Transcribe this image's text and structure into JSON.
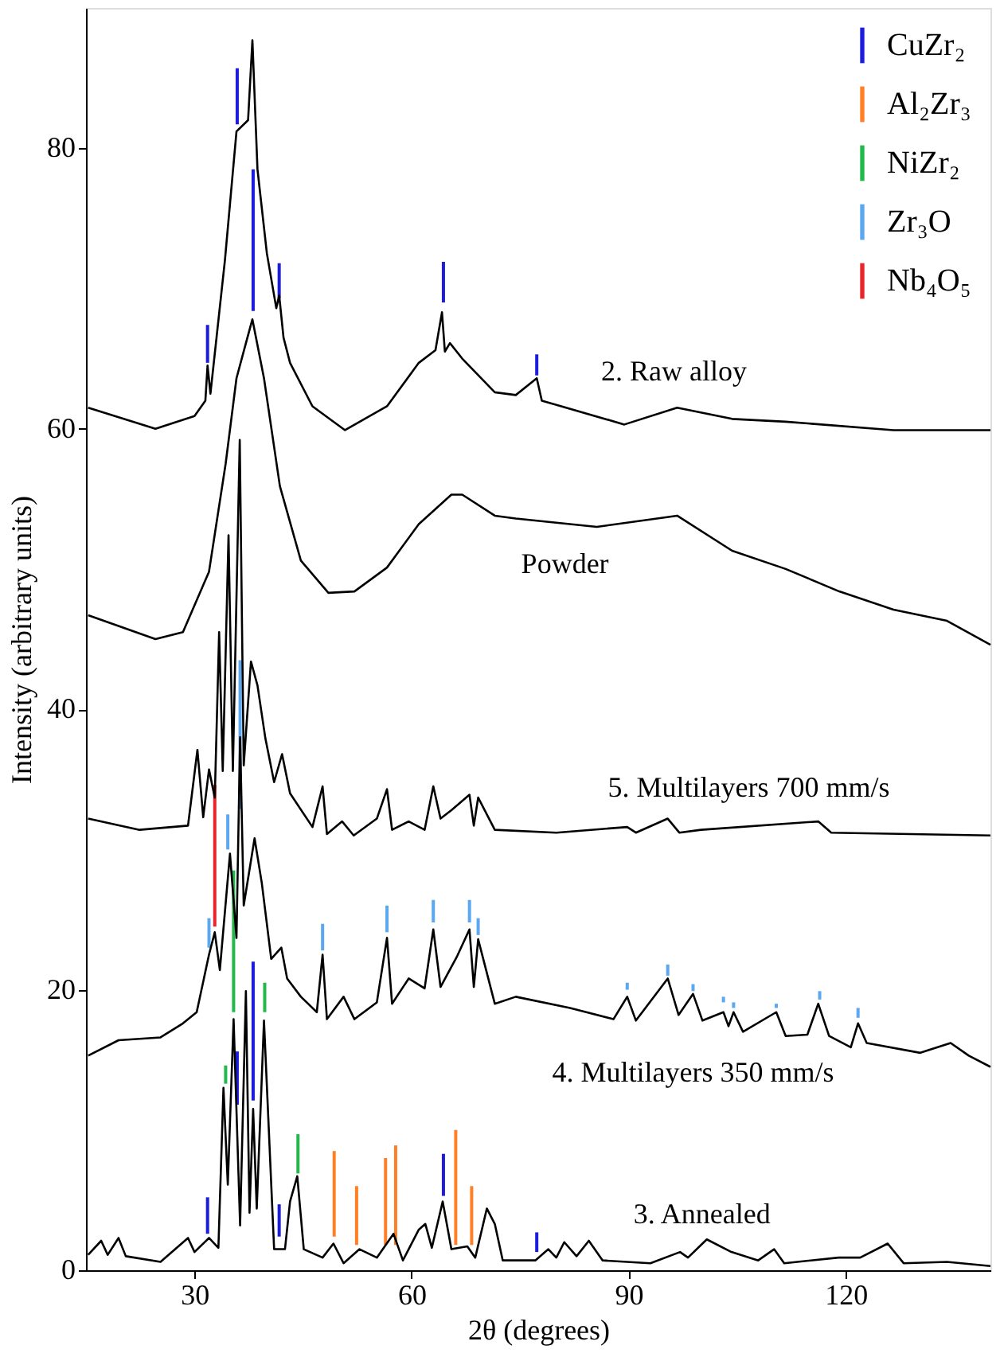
{
  "chart_data": {
    "type": "line",
    "xlabel": "2θ (degrees)",
    "ylabel": "Intensity (arbitrary units)",
    "xlim": [
      15,
      140
    ],
    "ylim": [
      0,
      90
    ],
    "xticks": [
      30,
      60,
      90,
      120
    ],
    "yticks": [
      0,
      20,
      40,
      60,
      80
    ],
    "grid": false,
    "legend": "top right",
    "series": [
      {
        "name": "2. Raw alloy",
        "color": "#000000",
        "x": [
          15.3,
          24.6,
          30,
          31.5,
          31.8,
          32.2,
          34.2,
          35.8,
          37.4,
          38,
          38.7,
          40,
          41.3,
          41.7,
          42.3,
          43.2,
          46.3,
          50.8,
          56.6,
          61,
          63.3,
          64.2,
          64.6,
          65.3,
          67,
          71.5,
          74.4,
          77.3,
          78,
          89.4,
          96.7,
          104.3,
          111.7,
          126.6,
          140
        ],
        "values": [
          61.5,
          60,
          60.9,
          62,
          64.5,
          62.5,
          72,
          81.2,
          82,
          87.7,
          78.5,
          72.5,
          68.6,
          69.5,
          66.5,
          64.7,
          61.6,
          59.9,
          61.6,
          64.7,
          65.6,
          68.3,
          65.5,
          66.1,
          65,
          62.6,
          62.4,
          63.6,
          62,
          60.3,
          61.5,
          60.7,
          60.5,
          59.9,
          59.9
        ]
      },
      {
        "name": "Powder",
        "color": "#000000",
        "x": [
          15.3,
          24.6,
          28.4,
          32,
          34.3,
          35.8,
          37,
          38,
          39.6,
          41.8,
          44.7,
          48.5,
          52.1,
          56.6,
          61,
          65.5,
          67,
          71.5,
          74.4,
          85.6,
          96.7,
          104.3,
          111.7,
          119.1,
          126.6,
          134,
          140
        ],
        "values": [
          46.7,
          45,
          45.5,
          49.8,
          57.5,
          63.6,
          65.9,
          67.8,
          63.6,
          55.9,
          50.6,
          48.3,
          48.4,
          50.1,
          53.2,
          55.3,
          55.3,
          53.8,
          53.6,
          53,
          53.8,
          51.3,
          50,
          48.4,
          47.1,
          46.3,
          44.6
        ]
      },
      {
        "name": "5. Multilayers 700 mm/s",
        "color": "#000000",
        "x": [
          15.3,
          22.4,
          29.1,
          30.4,
          31.2,
          32,
          32.8,
          33.4,
          33.9,
          34.7,
          35.3,
          36.25,
          36.8,
          37.8,
          38.7,
          39.8,
          41,
          42.1,
          43.2,
          46.3,
          47.7,
          48.3,
          50.4,
          52,
          55.2,
          56.6,
          57.3,
          59.6,
          61.8,
          63,
          64,
          65.5,
          68,
          68.6,
          69.2,
          71.5,
          80,
          89.8,
          91,
          95.4,
          97,
          100,
          116.2,
          118,
          140
        ],
        "values": [
          32.2,
          31.4,
          31.7,
          37.1,
          32.3,
          35.7,
          33.7,
          45.5,
          35.6,
          52.4,
          35.6,
          59.2,
          36,
          43.4,
          41.7,
          37.9,
          34.8,
          36.8,
          34,
          31.6,
          34.5,
          31.1,
          32,
          31,
          32.2,
          34.3,
          31.4,
          32,
          31.4,
          34.5,
          32.2,
          32.8,
          33.9,
          31.7,
          33.7,
          31.4,
          31.2,
          31.6,
          31.2,
          32.2,
          31.2,
          31.4,
          32.0,
          31.2,
          31.0
        ]
      },
      {
        "name": "4. Multilayers 350 mm/s",
        "color": "#000000",
        "x": [
          15.3,
          19.5,
          25.3,
          28.4,
          30.3,
          32,
          32.8,
          33.5,
          34.9,
          35.8,
          36.3,
          36.8,
          38.3,
          39.3,
          40.6,
          42,
          42.8,
          44.7,
          46.9,
          47.7,
          48.3,
          50.6,
          52.1,
          55.2,
          56.6,
          57.3,
          59.6,
          61.8,
          63,
          64,
          66.3,
          68,
          68.6,
          69.2,
          71.5,
          74.4,
          81.9,
          87.9,
          89.8,
          91,
          95.4,
          96.9,
          98.9,
          100.2,
          103.1,
          103.8,
          104.5,
          105.8,
          110.4,
          111.7,
          114.7,
          116.2,
          117.7,
          120.7,
          121.7,
          122.9,
          130.3,
          134.5,
          137,
          140
        ],
        "values": [
          15.3,
          16.4,
          16.6,
          17.6,
          18.4,
          22.5,
          24.1,
          21.4,
          29.7,
          23.7,
          38,
          26,
          30.8,
          27.6,
          22.2,
          23,
          20.8,
          19.5,
          18.4,
          22.5,
          17.9,
          19.5,
          17.9,
          19.1,
          23.7,
          19,
          20.8,
          20.1,
          24.3,
          20.2,
          22.4,
          24.3,
          20.2,
          23.6,
          19,
          19.5,
          18.7,
          17.9,
          19.5,
          17.8,
          20.8,
          18.2,
          19.7,
          17.8,
          18.4,
          17.4,
          18.4,
          17,
          18.4,
          16.7,
          16.8,
          19,
          16.7,
          15.9,
          17.6,
          16.2,
          15.5,
          16.2,
          15.3,
          14.5
        ]
      },
      {
        "name": "3. Annealed",
        "color": "#000000",
        "x": [
          15.3,
          17.1,
          18,
          19.5,
          20.5,
          25.3,
          29.1,
          30,
          32,
          33.3,
          34,
          34.6,
          35.4,
          36.3,
          37.1,
          37.6,
          38.1,
          38.6,
          39.6,
          41,
          42.5,
          43.2,
          44.2,
          45.1,
          47.7,
          49.2,
          50.6,
          52.8,
          55.2,
          57.5,
          58.8,
          61,
          61.9,
          62.8,
          64.3,
          65.5,
          67.7,
          68.8,
          70.4,
          71.5,
          72.6,
          77.1,
          78.9,
          80,
          81.1,
          82.8,
          84.5,
          86.4,
          93,
          97.1,
          98.2,
          100.8,
          104.2,
          107.9,
          110.1,
          111.5,
          119,
          122,
          125.8,
          128,
          134,
          140
        ],
        "values": [
          1.1,
          2.1,
          1.1,
          2.3,
          1.0,
          0.6,
          2.3,
          1.3,
          2.3,
          1.6,
          13,
          6.1,
          17.9,
          3.2,
          19.9,
          4.1,
          11.5,
          4.4,
          17.8,
          1.5,
          1.5,
          4.9,
          6.7,
          1.5,
          0.9,
          1.9,
          0.5,
          1.5,
          0.9,
          2.6,
          0.7,
          2.9,
          3.3,
          1.6,
          4.9,
          1.5,
          1.7,
          0.9,
          4.4,
          3.3,
          0.7,
          0.7,
          1.5,
          0.9,
          2.0,
          1.0,
          2.1,
          0.7,
          0.5,
          1.3,
          0.9,
          2.2,
          1.3,
          0.7,
          1.5,
          0.5,
          0.9,
          0.9,
          1.9,
          0.5,
          0.6,
          0.3
        ]
      },
      {
        "type": "bar",
        "name": "CuZr₂",
        "color": "#1c1cdc",
        "x": [
          31.8,
          35.9,
          38.1,
          41.7,
          64.4,
          77.3
        ],
        "base": [
          64.7,
          81.7,
          68.4,
          69.3,
          69.0,
          63.8
        ],
        "values": [
          2.7,
          4.0,
          10.1,
          2.5,
          2.9,
          1.5
        ]
      },
      {
        "type": "bar",
        "color": "#1c1cdc",
        "x": [
          31.8,
          35.9,
          38.1,
          41.7,
          64.4,
          77.3
        ],
        "base": [
          2.6,
          11.8,
          12.1,
          2.4,
          5.3,
          1.3
        ],
        "values": [
          2.6,
          3.8,
          9.9,
          2.3,
          3.0,
          1.4
        ]
      },
      {
        "type": "bar",
        "name": "Al₂Zr₃",
        "color": "#ff7f27",
        "x": [
          49.3,
          52.4,
          56.4,
          57.8,
          66.1,
          68.3
        ],
        "base": [
          2.4,
          1.8,
          1.8,
          1.8,
          1.8,
          1.8
        ],
        "values": [
          6.1,
          4.2,
          6.2,
          7.1,
          8.2,
          4.2
        ]
      },
      {
        "type": "bar",
        "name": "NiZr₂",
        "color": "#22b84a",
        "x": [
          34.3,
          35.4,
          39.7,
          44.3
        ],
        "base": [
          13.3,
          18.4,
          18.4,
          6.9
        ],
        "values": [
          1.3,
          10.1,
          2.1,
          2.8
        ]
      },
      {
        "type": "bar",
        "name": "Zr₃O",
        "color": "#5ca8f0",
        "x": [
          32,
          34.6,
          36.3,
          47.7,
          56.6,
          63,
          68,
          69.2,
          89.8,
          95.4,
          98.9,
          103.1,
          104.5,
          110.4,
          116.4,
          121.7
        ],
        "base": [
          23,
          30,
          32.9,
          22.8,
          24.1,
          24.8,
          24.8,
          23.9,
          20,
          21,
          19.9,
          19.1,
          18.7,
          18.7,
          19.3,
          18
        ],
        "values": [
          2.1,
          2.5,
          10.6,
          1.9,
          1.9,
          1.6,
          1.6,
          1.2,
          0.5,
          0.8,
          0.5,
          0.4,
          0.4,
          0.3,
          0.6,
          0.7
        ]
      },
      {
        "type": "bar",
        "name": "Nb₄O₅",
        "color": "#e8252a",
        "x": [
          32.8
        ],
        "base": [
          24.5
        ],
        "values": [
          10.1
        ]
      }
    ]
  }
}
